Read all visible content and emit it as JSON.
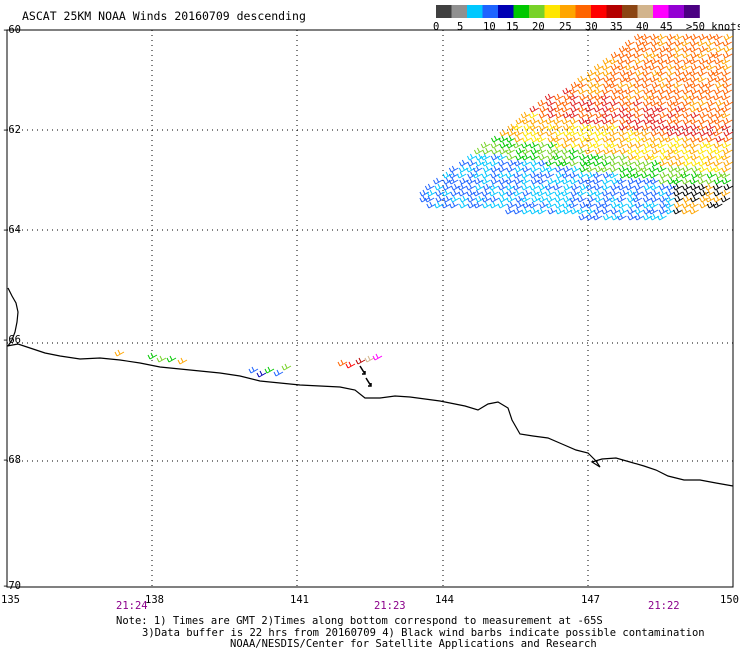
{
  "title": "ASCAT 25KM NOAA Winds 20160709 descending",
  "legend": {
    "colors": [
      "#404040",
      "#909090",
      "#00c8ff",
      "#1e64ff",
      "#0000b4",
      "#00c800",
      "#78d228",
      "#ffe600",
      "#ffa500",
      "#ff6400",
      "#ff0000",
      "#b40000",
      "#8b4513",
      "#d2b48c",
      "#ff00ff",
      "#9400d3",
      "#4b0082"
    ],
    "labels": [
      "0",
      "5",
      "10",
      "15",
      "20",
      "25",
      "30",
      "35",
      "40",
      "45",
      ">50 knots"
    ]
  },
  "lat_labels": [
    "-60",
    "-62",
    "-64",
    "-66",
    "-68",
    "-70"
  ],
  "lon_labels": [
    "135",
    "138",
    "141",
    "144",
    "147",
    "150"
  ],
  "time_labels": [
    "21:24",
    "21:23",
    "21:22"
  ],
  "notes": [
    "Note: 1) Times are GMT 2)Times along bottom correspond to measurement at -65S",
    "3)Data buffer is 22 hrs from 20160709 4) Black wind barbs indicate possible contamination",
    "NOAA/NESDIS/Center for Satellite Applications and Research"
  ],
  "colors": {
    "coastline": "#000000",
    "grid": "#000000",
    "time_labels": "#8b008b"
  }
}
